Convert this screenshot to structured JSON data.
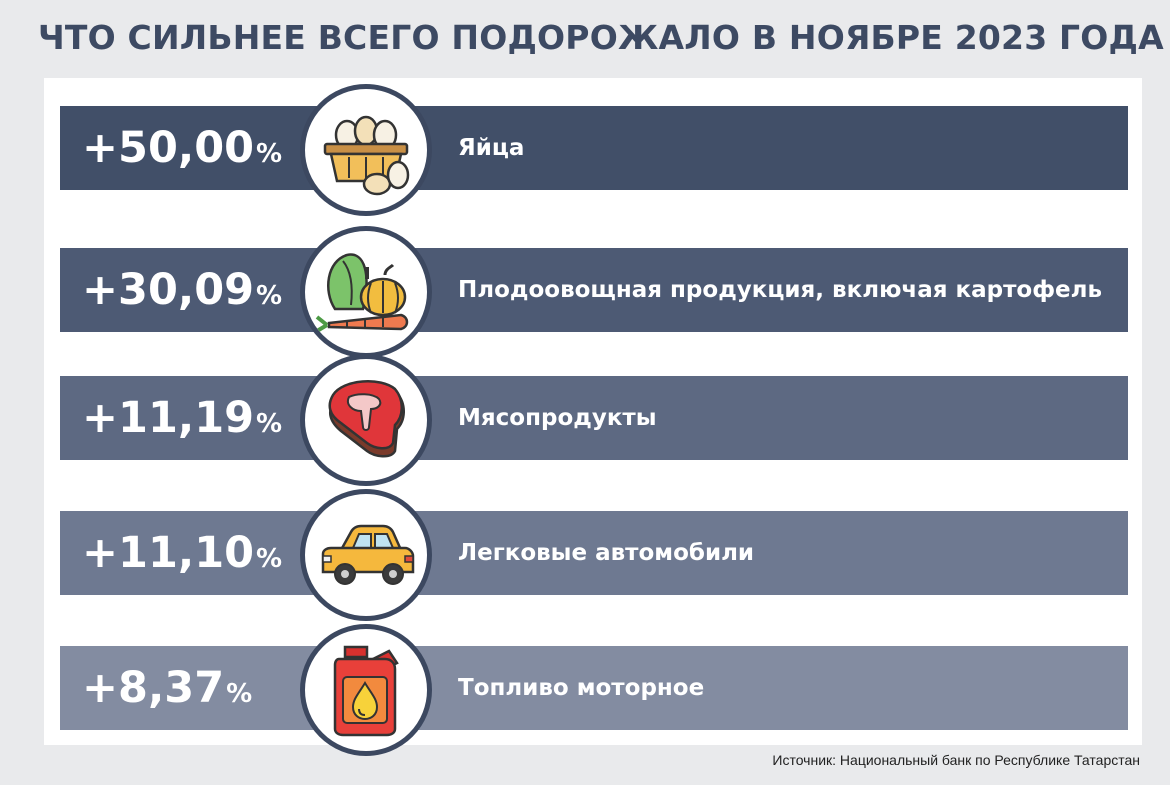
{
  "title": "ЧТО СИЛЬНЕЕ ВСЕГО ПОДОРОЖАЛО В НОЯБРЕ 2023 ГОДА",
  "source": "Источник: Национальный банк по Республике Татарстан",
  "rows": [
    {
      "value": "+50,00",
      "unit": "%",
      "label": "Яйца",
      "icon": "eggs-basket-icon",
      "color": "#414f68"
    },
    {
      "value": "+30,09",
      "unit": "%",
      "label": "Плодоовощная продукция, включая картофель",
      "icon": "vegetables-icon",
      "color": "#4d5a74"
    },
    {
      "value": "+11,19",
      "unit": "%",
      "label": "Мясопродукты",
      "icon": "steak-icon",
      "color": "#5d6982"
    },
    {
      "value": "+11,10",
      "unit": "%",
      "label": "Легковые автомобили",
      "icon": "car-icon",
      "color": "#6e7991"
    },
    {
      "value": "+8,37",
      "unit": "%",
      "label": "Топливо моторное",
      "icon": "fuel-canister-icon",
      "color": "#838ca1"
    }
  ],
  "chart_data": {
    "type": "bar",
    "title": "ЧТО СИЛЬНЕЕ ВСЕГО ПОДОРОЖАЛО В НОЯБРЕ 2023 ГОДА",
    "categories": [
      "Яйца",
      "Плодоовощная продукция, включая картофель",
      "Мясопродукты",
      "Легковые автомобили",
      "Топливо моторное"
    ],
    "values": [
      50.0,
      30.09,
      11.19,
      11.1,
      8.37
    ],
    "unit": "%",
    "xlabel": "",
    "ylabel": ""
  }
}
